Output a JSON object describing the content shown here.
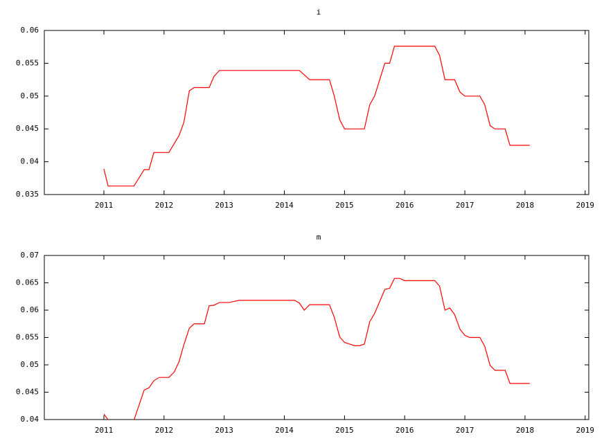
{
  "chart_data": [
    {
      "type": "line",
      "title": "i",
      "color": "#ff0000",
      "x": [
        2011.0,
        2011.07,
        2011.5,
        2011.67,
        2011.75,
        2011.83,
        2012.08,
        2012.25,
        2012.33,
        2012.42,
        2012.5,
        2012.75,
        2012.83,
        2012.92,
        2014.25,
        2014.42,
        2014.75,
        2014.83,
        2014.92,
        2015.0,
        2015.33,
        2015.42,
        2015.5,
        2015.67,
        2015.75,
        2015.83,
        2016.5,
        2016.58,
        2016.67,
        2016.83,
        2016.92,
        2017.0,
        2017.25,
        2017.33,
        2017.42,
        2017.5,
        2017.67,
        2017.75,
        2018.08
      ],
      "values": [
        0.0389,
        0.0363,
        0.0363,
        0.0388,
        0.0388,
        0.0414,
        0.0414,
        0.044,
        0.046,
        0.0508,
        0.0513,
        0.0513,
        0.053,
        0.0539,
        0.0539,
        0.0525,
        0.0525,
        0.05,
        0.0464,
        0.045,
        0.045,
        0.0487,
        0.05,
        0.055,
        0.055,
        0.0576,
        0.0576,
        0.0562,
        0.0525,
        0.0525,
        0.0506,
        0.05,
        0.05,
        0.0487,
        0.0455,
        0.045,
        0.045,
        0.0425,
        0.0425
      ],
      "xlim": [
        2010.01,
        2019.06
      ],
      "xticks": [
        2011,
        2012,
        2013,
        2014,
        2015,
        2016,
        2017,
        2018,
        2019
      ],
      "ylim": [
        0.035,
        0.06
      ],
      "yticks": [
        0.035,
        0.04,
        0.045,
        0.05,
        0.055,
        0.06
      ]
    },
    {
      "type": "line",
      "title": "m",
      "color": "#ff0000",
      "x": [
        2011.0,
        2011.08,
        2011.17,
        2011.42,
        2011.5,
        2011.67,
        2011.75,
        2011.83,
        2011.92,
        2012.08,
        2012.17,
        2012.25,
        2012.33,
        2012.42,
        2012.5,
        2012.67,
        2012.75,
        2012.83,
        2012.92,
        2013.08,
        2013.25,
        2014.17,
        2014.25,
        2014.33,
        2014.42,
        2014.75,
        2014.83,
        2014.92,
        2015.0,
        2015.17,
        2015.25,
        2015.33,
        2015.42,
        2015.5,
        2015.67,
        2015.75,
        2015.83,
        2015.92,
        2016.0,
        2016.5,
        2016.58,
        2016.67,
        2016.75,
        2016.83,
        2016.92,
        2017.0,
        2017.08,
        2017.25,
        2017.33,
        2017.42,
        2017.5,
        2017.67,
        2017.75,
        2018.08
      ],
      "values": [
        0.041,
        0.0398,
        0.0393,
        0.0393,
        0.0399,
        0.0454,
        0.0458,
        0.0471,
        0.0477,
        0.0477,
        0.0487,
        0.0506,
        0.0537,
        0.0567,
        0.0575,
        0.0575,
        0.0608,
        0.0609,
        0.0614,
        0.0614,
        0.0618,
        0.0618,
        0.0613,
        0.06,
        0.061,
        0.061,
        0.0587,
        0.0551,
        0.0541,
        0.0535,
        0.0535,
        0.0538,
        0.0579,
        0.0594,
        0.0638,
        0.064,
        0.0658,
        0.0658,
        0.0654,
        0.0654,
        0.0644,
        0.06,
        0.0604,
        0.0592,
        0.0565,
        0.0554,
        0.055,
        0.055,
        0.0534,
        0.0499,
        0.049,
        0.049,
        0.0466,
        0.0466
      ],
      "xlim": [
        2010.01,
        2019.06
      ],
      "xticks": [
        2011,
        2012,
        2013,
        2014,
        2015,
        2016,
        2017,
        2018,
        2019
      ],
      "ylim": [
        0.04,
        0.07
      ],
      "yticks": [
        0.04,
        0.045,
        0.05,
        0.055,
        0.06,
        0.065,
        0.07
      ]
    }
  ]
}
